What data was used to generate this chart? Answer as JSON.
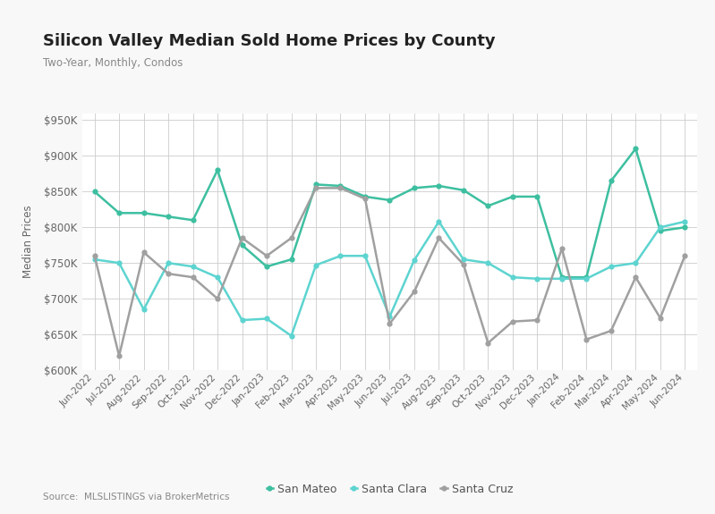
{
  "title": "Silicon Valley Median Sold Home Prices by County",
  "subtitle": "Two-Year, Monthly, Condos",
  "ylabel": "Median Prices",
  "source": "Source:  MLSLISTINGS via BrokerMetrics",
  "background_color": "#f8f8f8",
  "plot_bg_color": "#ffffff",
  "grid_color": "#cccccc",
  "ylim": [
    600000,
    960000
  ],
  "yticks": [
    600000,
    650000,
    700000,
    750000,
    800000,
    850000,
    900000,
    950000
  ],
  "months": [
    "Jun-2022",
    "Jul-2022",
    "Aug-2022",
    "Sep-2022",
    "Oct-2022",
    "Nov-2022",
    "Dec-2022",
    "Jan-2023",
    "Feb-2023",
    "Mar-2023",
    "Apr-2023",
    "May-2023",
    "Jun-2023",
    "Jul-2023",
    "Aug-2023",
    "Sep-2023",
    "Oct-2023",
    "Nov-2023",
    "Dec-2023",
    "Jan-2024",
    "Feb-2024",
    "Mar-2024",
    "Apr-2024",
    "May-2024",
    "Jun-2024"
  ],
  "san_mateo": [
    850000,
    820000,
    820000,
    815000,
    810000,
    880000,
    775000,
    745000,
    755000,
    860000,
    858000,
    843000,
    838000,
    855000,
    858000,
    852000,
    830000,
    843000,
    843000,
    730000,
    730000,
    865000,
    910000,
    795000,
    800000
  ],
  "santa_clara": [
    755000,
    750000,
    685000,
    750000,
    745000,
    730000,
    670000,
    672000,
    648000,
    747000,
    760000,
    760000,
    675000,
    754000,
    808000,
    755000,
    750000,
    730000,
    728000,
    728000,
    728000,
    745000,
    750000,
    800000,
    808000
  ],
  "santa_cruz": [
    760000,
    620000,
    765000,
    735000,
    730000,
    700000,
    785000,
    760000,
    785000,
    855000,
    855000,
    840000,
    665000,
    710000,
    785000,
    748000,
    638000,
    668000,
    670000,
    770000,
    643000,
    655000,
    730000,
    673000,
    760000
  ],
  "san_mateo_color": "#3dbfa0",
  "santa_clara_color": "#5dd4d0",
  "santa_cruz_color": "#a0a0a0",
  "line_width": 1.8,
  "marker_size": 4.5
}
